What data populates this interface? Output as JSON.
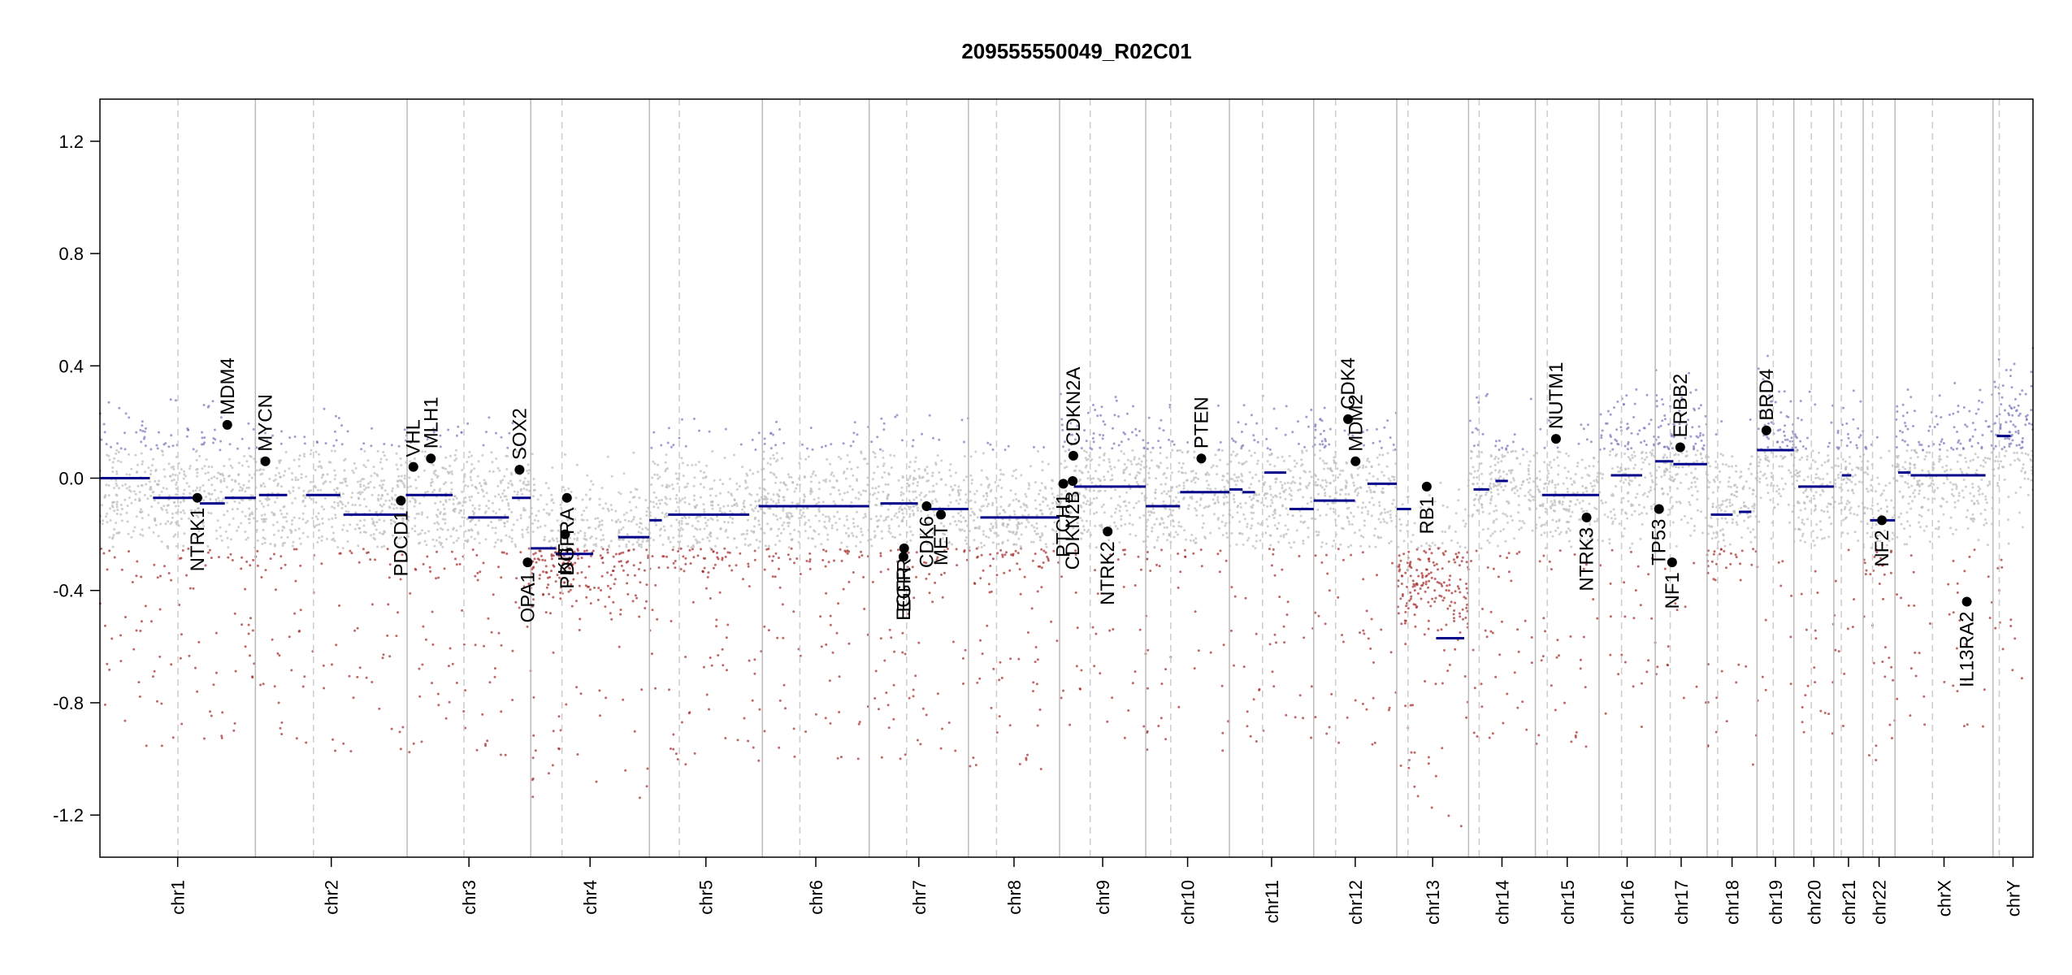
{
  "chart_data": {
    "type": "scatter",
    "title": "209555550049_R02C01",
    "xlabel": "",
    "ylabel": "",
    "ylim": [
      -1.35,
      1.35
    ],
    "y_ticks": [
      1.2,
      0.8,
      0.4,
      0.0,
      -0.4,
      -0.8,
      -1.2
    ],
    "y_tick_labels": [
      "1.2",
      "0.8",
      "0.4",
      "0.0",
      "-0.4",
      "-0.8",
      "-1.2"
    ],
    "grid": false,
    "colors": {
      "axis": "#000000",
      "chrom_boundary": "#bbbbbb",
      "centromere": "#cccccc",
      "segment": "#00008b",
      "gain_points": "#7777bb",
      "neutral_points": "#bbbbbb",
      "loss_points": "#a52a2a",
      "gene_marker": "#000000"
    },
    "x_range": [
      0,
      3096
    ],
    "chromosomes": [
      {
        "name": "chr1",
        "start": 0,
        "end": 249,
        "cen": 125
      },
      {
        "name": "chr2",
        "start": 249,
        "end": 492,
        "cen": 93
      },
      {
        "name": "chr3",
        "start": 492,
        "end": 690,
        "cen": 91
      },
      {
        "name": "chr4",
        "start": 690,
        "end": 880,
        "cen": 50
      },
      {
        "name": "chr5",
        "start": 880,
        "end": 1061,
        "cen": 48
      },
      {
        "name": "chr6",
        "start": 1061,
        "end": 1232,
        "cen": 60
      },
      {
        "name": "chr7",
        "start": 1232,
        "end": 1391,
        "cen": 60
      },
      {
        "name": "chr8",
        "start": 1391,
        "end": 1537,
        "cen": 45
      },
      {
        "name": "chr9",
        "start": 1537,
        "end": 1675,
        "cen": 49
      },
      {
        "name": "chr10",
        "start": 1675,
        "end": 1809,
        "cen": 40
      },
      {
        "name": "chr11",
        "start": 1809,
        "end": 1944,
        "cen": 53
      },
      {
        "name": "chr12",
        "start": 1944,
        "end": 2077,
        "cen": 35
      },
      {
        "name": "chr13",
        "start": 2077,
        "end": 2192,
        "cen": 18
      },
      {
        "name": "chr14",
        "start": 2192,
        "end": 2299,
        "cen": 17
      },
      {
        "name": "chr15",
        "start": 2299,
        "end": 2401,
        "cen": 19
      },
      {
        "name": "chr16",
        "start": 2401,
        "end": 2491,
        "cen": 36
      },
      {
        "name": "chr17",
        "start": 2491,
        "end": 2574,
        "cen": 24
      },
      {
        "name": "chr18",
        "start": 2574,
        "end": 2654,
        "cen": 17
      },
      {
        "name": "chr19",
        "start": 2654,
        "end": 2713,
        "cen": 26
      },
      {
        "name": "chr20",
        "start": 2713,
        "end": 2777,
        "cen": 28
      },
      {
        "name": "chr21",
        "start": 2777,
        "end": 2824,
        "cen": 12
      },
      {
        "name": "chr22",
        "start": 2824,
        "end": 2875,
        "cen": 15
      },
      {
        "name": "chrX",
        "start": 2875,
        "end": 3032,
        "cen": 60
      },
      {
        "name": "chrY",
        "start": 3032,
        "end": 3096,
        "cen": 10
      }
    ],
    "segments": [
      {
        "start": 0,
        "end": 80,
        "value": 0.0
      },
      {
        "start": 85,
        "end": 160,
        "value": -0.07
      },
      {
        "start": 160,
        "end": 200,
        "value": -0.09
      },
      {
        "start": 200,
        "end": 250,
        "value": -0.07
      },
      {
        "start": 255,
        "end": 300,
        "value": -0.06
      },
      {
        "start": 330,
        "end": 385,
        "value": -0.06
      },
      {
        "start": 390,
        "end": 490,
        "value": -0.13
      },
      {
        "start": 490,
        "end": 565,
        "value": -0.06
      },
      {
        "start": 590,
        "end": 655,
        "value": -0.14
      },
      {
        "start": 660,
        "end": 690,
        "value": -0.07
      },
      {
        "start": 690,
        "end": 730,
        "value": -0.25
      },
      {
        "start": 730,
        "end": 790,
        "value": -0.27
      },
      {
        "start": 830,
        "end": 880,
        "value": -0.21
      },
      {
        "start": 880,
        "end": 900,
        "value": -0.15
      },
      {
        "start": 910,
        "end": 1040,
        "value": -0.13
      },
      {
        "start": 1055,
        "end": 1232,
        "value": -0.1
      },
      {
        "start": 1250,
        "end": 1310,
        "value": -0.09
      },
      {
        "start": 1320,
        "end": 1391,
        "value": -0.11
      },
      {
        "start": 1410,
        "end": 1537,
        "value": -0.14
      },
      {
        "start": 1560,
        "end": 1675,
        "value": -0.03
      },
      {
        "start": 1675,
        "end": 1730,
        "value": -0.1
      },
      {
        "start": 1730,
        "end": 1809,
        "value": -0.05
      },
      {
        "start": 1809,
        "end": 1830,
        "value": -0.04
      },
      {
        "start": 1830,
        "end": 1850,
        "value": -0.05
      },
      {
        "start": 1865,
        "end": 1900,
        "value": 0.02
      },
      {
        "start": 1905,
        "end": 1944,
        "value": -0.11
      },
      {
        "start": 1944,
        "end": 2010,
        "value": -0.08
      },
      {
        "start": 2030,
        "end": 2077,
        "value": -0.02
      },
      {
        "start": 2077,
        "end": 2100,
        "value": -0.11
      },
      {
        "start": 2140,
        "end": 2185,
        "value": -0.57
      },
      {
        "start": 2200,
        "end": 2225,
        "value": -0.04
      },
      {
        "start": 2235,
        "end": 2255,
        "value": -0.01
      },
      {
        "start": 2310,
        "end": 2401,
        "value": -0.06
      },
      {
        "start": 2420,
        "end": 2470,
        "value": 0.01
      },
      {
        "start": 2491,
        "end": 2520,
        "value": 0.06
      },
      {
        "start": 2520,
        "end": 2574,
        "value": 0.05
      },
      {
        "start": 2580,
        "end": 2615,
        "value": -0.13
      },
      {
        "start": 2625,
        "end": 2645,
        "value": -0.12
      },
      {
        "start": 2654,
        "end": 2713,
        "value": 0.1
      },
      {
        "start": 2720,
        "end": 2777,
        "value": -0.03
      },
      {
        "start": 2790,
        "end": 2805,
        "value": 0.01
      },
      {
        "start": 2835,
        "end": 2875,
        "value": -0.15
      },
      {
        "start": 2880,
        "end": 2900,
        "value": 0.02
      },
      {
        "start": 2900,
        "end": 3020,
        "value": 0.01
      },
      {
        "start": 3038,
        "end": 3060,
        "value": 0.15
      }
    ],
    "genes": [
      {
        "name": "NTRK1",
        "pos": 156,
        "value": -0.07,
        "side": "below"
      },
      {
        "name": "MDM4",
        "pos": 204,
        "value": 0.19,
        "side": "above"
      },
      {
        "name": "MYCN",
        "pos": 265,
        "value": 0.06,
        "side": "above"
      },
      {
        "name": "PDCD1",
        "pos": 482,
        "value": -0.08,
        "side": "below"
      },
      {
        "name": "VHL",
        "pos": 502,
        "value": 0.04,
        "side": "above"
      },
      {
        "name": "MLH1",
        "pos": 530,
        "value": 0.07,
        "side": "above"
      },
      {
        "name": "SOX2",
        "pos": 672,
        "value": 0.03,
        "side": "above"
      },
      {
        "name": "OPA1",
        "pos": 685,
        "value": -0.3,
        "side": "below"
      },
      {
        "name": "KIT",
        "pos": 745,
        "value": -0.2,
        "side": "below"
      },
      {
        "name": "PDGFRA",
        "pos": 748,
        "value": -0.07,
        "side": "below"
      },
      {
        "name": "EGFR",
        "pos": 1287,
        "value": -0.28,
        "side": "below"
      },
      {
        "name": "EGFR",
        "pos": 1288,
        "value": -0.25,
        "side": "below"
      },
      {
        "name": "MET",
        "pos": 1347,
        "value": -0.13,
        "side": "below"
      },
      {
        "name": "CDK6",
        "pos": 1324,
        "value": -0.1,
        "side": "below"
      },
      {
        "name": "CDKN2A",
        "pos": 1559,
        "value": 0.08,
        "side": "above"
      },
      {
        "name": "CDKN2B",
        "pos": 1558,
        "value": -0.01,
        "side": "below"
      },
      {
        "name": "PTCH1",
        "pos": 1543,
        "value": -0.02,
        "side": "below"
      },
      {
        "name": "NTRK2",
        "pos": 1614,
        "value": -0.19,
        "side": "below"
      },
      {
        "name": "PTEN",
        "pos": 1764,
        "value": 0.07,
        "side": "above"
      },
      {
        "name": "CDK4",
        "pos": 1999,
        "value": 0.21,
        "side": "above"
      },
      {
        "name": "MDM2",
        "pos": 2011,
        "value": 0.06,
        "side": "above"
      },
      {
        "name": "RB1",
        "pos": 2125,
        "value": -0.03,
        "side": "below"
      },
      {
        "name": "NUTM1",
        "pos": 2332,
        "value": 0.14,
        "side": "above"
      },
      {
        "name": "NTRK3",
        "pos": 2381,
        "value": -0.14,
        "side": "below"
      },
      {
        "name": "TP53",
        "pos": 2497,
        "value": -0.11,
        "side": "below"
      },
      {
        "name": "NF1",
        "pos": 2518,
        "value": -0.3,
        "side": "below"
      },
      {
        "name": "ERBB2",
        "pos": 2531,
        "value": 0.11,
        "side": "above"
      },
      {
        "name": "BRD4",
        "pos": 2669,
        "value": 0.17,
        "side": "above"
      },
      {
        "name": "NF2",
        "pos": 2854,
        "value": -0.15,
        "side": "below"
      },
      {
        "name": "IL13RA2",
        "pos": 2990,
        "value": -0.44,
        "side": "below"
      }
    ]
  }
}
